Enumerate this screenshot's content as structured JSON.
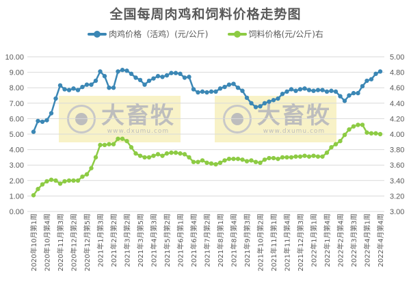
{
  "title": "全国每周肉鸡和饲料价格走势图",
  "legend": [
    {
      "label": "肉鸡价格（活鸡）(元/公斤)",
      "color": "#3B87B5"
    },
    {
      "label": "饲料价格(元/公斤)右",
      "color": "#8DCB44"
    }
  ],
  "watermark": {
    "brand": "大畜牧",
    "url": "www.dxumu.com"
  },
  "colors": {
    "chicken": "#3B87B5",
    "feed": "#8DCB44",
    "grid": "#D9D9D9",
    "text": "#595959"
  },
  "chart_data": {
    "type": "line",
    "title": "全国每周肉鸡和饲料价格走势图",
    "xlabel": "",
    "ylabel_left": "肉鸡价格（活鸡）(元/公斤)",
    "ylabel_right": "饲料价格(元/公斤)",
    "ylim_left": [
      0,
      10
    ],
    "ylim_right": [
      3,
      5
    ],
    "yticks_left": [
      "0.00",
      "1.00",
      "2.00",
      "3.00",
      "4.00",
      "5.00",
      "6.00",
      "7.00",
      "8.00",
      "9.00",
      "10.00"
    ],
    "yticks_right": [
      "3.00",
      "3.20",
      "3.40",
      "3.60",
      "3.80",
      "4.00",
      "4.20",
      "4.40",
      "4.60",
      "4.80",
      "5.00"
    ],
    "grid": true,
    "legend_position": "top",
    "x_tick_labels": [
      "2020年10月第1周",
      "2020年10月第4周",
      "2020年11月第3周",
      "2020年12月第2周",
      "2020年12月第5周",
      "2021年1月第3周",
      "2021年2月第2周",
      "2021年3月第2周",
      "2021年3月第5周",
      "2021年4月第3周",
      "2021年5月第2周",
      "2021年6月第1周",
      "2021年6月第4周",
      "2021年7月第2周",
      "2021年8月第1周",
      "2021年8月第4周",
      "2021年9月第3周",
      "2021年10月第2周",
      "2021年11月第1周",
      "2021年11月第4周",
      "2021年12月第3周",
      "2022年1月第1周",
      "2022年1月第4周",
      "2022年2月第4周",
      "2022年3月第3周",
      "2022年4月第1周",
      "2022年4月第4周"
    ],
    "series": [
      {
        "name": "肉鸡价格（活鸡）(元/公斤)",
        "axis": "left",
        "values": [
          5.15,
          5.85,
          5.8,
          5.9,
          6.35,
          7.3,
          8.15,
          7.9,
          7.85,
          7.95,
          7.85,
          8.05,
          8.2,
          8.2,
          8.45,
          9.05,
          8.75,
          8.0,
          8.0,
          9.05,
          9.15,
          9.1,
          8.9,
          8.65,
          8.5,
          8.2,
          8.45,
          8.6,
          8.75,
          8.7,
          8.8,
          8.95,
          8.95,
          8.9,
          8.65,
          8.7,
          7.9,
          7.7,
          7.75,
          7.7,
          7.75,
          7.75,
          7.95,
          8.05,
          8.2,
          8.25,
          8.0,
          7.8,
          7.35,
          7.0,
          6.75,
          6.8,
          7.0,
          7.1,
          7.2,
          7.3,
          7.6,
          7.75,
          7.9,
          7.8,
          7.9,
          7.95,
          7.85,
          7.8,
          7.85,
          7.85,
          7.75,
          7.8,
          7.75,
          7.45,
          7.15,
          7.5,
          7.65,
          7.65,
          8.1,
          8.45,
          8.55,
          8.9,
          9.05
        ]
      },
      {
        "name": "饲料价格(元/公斤)右",
        "axis": "right",
        "values": [
          3.21,
          3.29,
          3.35,
          3.39,
          3.41,
          3.4,
          3.36,
          3.39,
          3.4,
          3.4,
          3.4,
          3.45,
          3.48,
          3.56,
          3.7,
          3.86,
          3.86,
          3.87,
          3.87,
          3.94,
          3.94,
          3.91,
          3.83,
          3.75,
          3.72,
          3.7,
          3.7,
          3.72,
          3.74,
          3.72,
          3.75,
          3.76,
          3.76,
          3.75,
          3.74,
          3.7,
          3.64,
          3.64,
          3.66,
          3.63,
          3.62,
          3.61,
          3.63,
          3.66,
          3.68,
          3.68,
          3.68,
          3.67,
          3.65,
          3.66,
          3.64,
          3.63,
          3.67,
          3.69,
          3.69,
          3.68,
          3.7,
          3.7,
          3.7,
          3.71,
          3.71,
          3.72,
          3.71,
          3.72,
          3.71,
          3.71,
          3.76,
          3.83,
          3.87,
          3.91,
          3.99,
          4.06,
          4.1,
          4.12,
          4.12,
          4.02,
          4.01,
          4.01,
          4.0
        ]
      }
    ]
  }
}
